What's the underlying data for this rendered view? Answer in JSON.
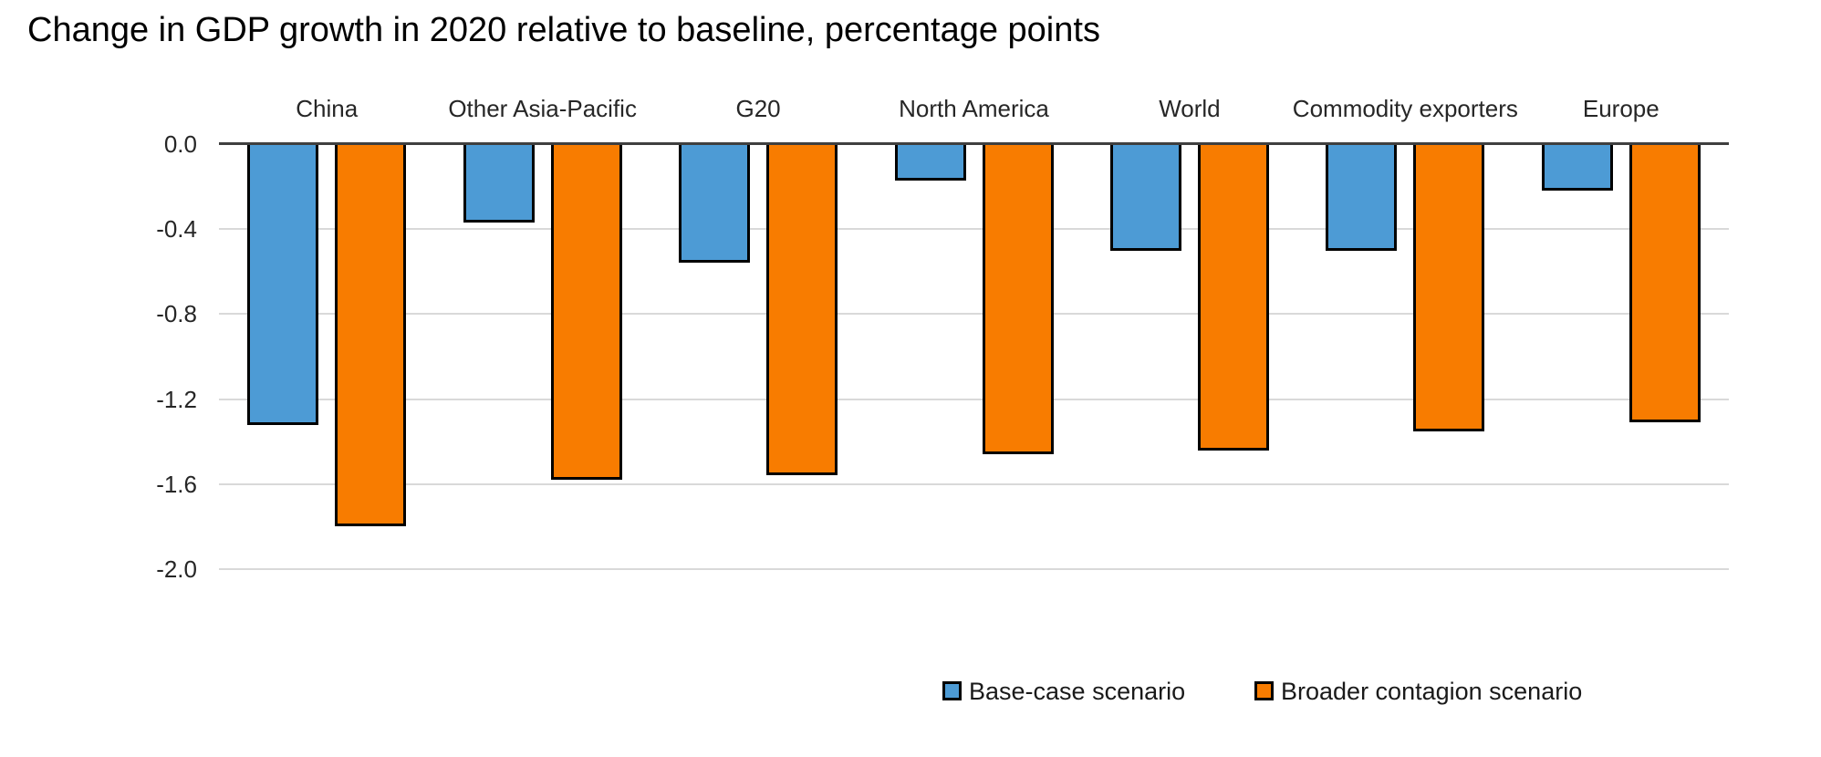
{
  "title": "Change in GDP growth in 2020 relative to baseline, percentage points",
  "chart_data": {
    "type": "bar",
    "title": "Change in GDP growth in 2020 relative to baseline, percentage points",
    "categories": [
      "China",
      "Other Asia-Pacific",
      "G20",
      "North America",
      "World",
      "Commodity exporters",
      "Europe"
    ],
    "series": [
      {
        "name": "Base-case scenario",
        "color": "#4D9BD5",
        "values": [
          -1.32,
          -0.37,
          -0.56,
          -0.17,
          -0.5,
          -0.5,
          -0.22
        ]
      },
      {
        "name": "Broader contagion scenario",
        "color": "#F87C00",
        "values": [
          -1.8,
          -1.58,
          -1.56,
          -1.46,
          -1.44,
          -1.35,
          -1.31
        ]
      }
    ],
    "ylim": [
      -2.0,
      0.0
    ],
    "yticks": [
      0.0,
      -0.4,
      -0.8,
      -1.2,
      -1.6,
      -2.0
    ],
    "ytick_labels": [
      "0.0",
      "-0.4",
      "-0.8",
      "-1.2",
      "-1.6",
      "-2.0"
    ],
    "grid": true,
    "legend_position": "inside-bottom-right",
    "colors": {
      "axis_line": "#3F3F3F",
      "gridline": "#D9D9D9",
      "bar_border": "#000000",
      "background": "#FFFFFF"
    }
  }
}
